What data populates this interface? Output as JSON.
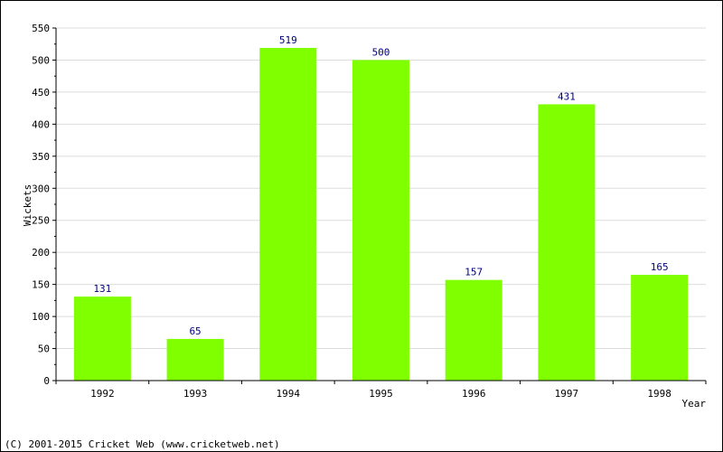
{
  "chart_data": {
    "type": "bar",
    "categories": [
      "1992",
      "1993",
      "1994",
      "1995",
      "1996",
      "1997",
      "1998"
    ],
    "values": [
      131,
      65,
      519,
      500,
      157,
      431,
      165
    ],
    "title": "",
    "xlabel": "Year",
    "ylabel": "Wickets",
    "ylim": [
      0,
      550
    ],
    "yticks": [
      0,
      50,
      100,
      150,
      200,
      250,
      300,
      350,
      400,
      450,
      500,
      550
    ],
    "grid": true,
    "bar_color": "#80ff00",
    "label_color": "#000080"
  },
  "footer": {
    "copyright": "(C) 2001-2015 Cricket Web (www.cricketweb.net)"
  }
}
